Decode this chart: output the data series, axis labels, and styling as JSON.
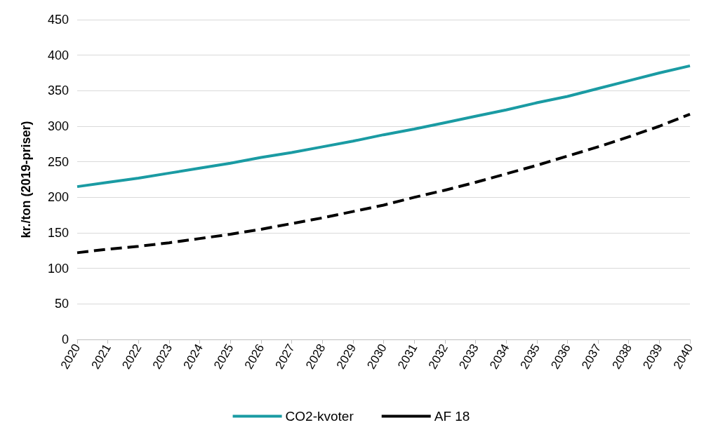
{
  "chart_data": {
    "type": "line",
    "ylabel": "kr./ton (2019-priser)",
    "categories": [
      "2020",
      "2021",
      "2022",
      "2023",
      "2024",
      "2025",
      "2026",
      "2027",
      "2028",
      "2029",
      "2030",
      "2031",
      "2032",
      "2033",
      "2034",
      "2035",
      "2036",
      "2037",
      "2038",
      "2039",
      "2040"
    ],
    "series": [
      {
        "name": "CO2-kvoter",
        "color": "#1a9ba3",
        "line_style": "solid",
        "values": [
          215,
          221,
          227,
          234,
          241,
          248,
          256,
          263,
          271,
          279,
          288,
          296,
          305,
          314,
          323,
          333,
          342,
          353,
          364,
          375,
          385
        ]
      },
      {
        "name": "AF 18",
        "color": "#000000",
        "line_style": "dashed",
        "values": [
          122,
          127,
          131,
          136,
          142,
          148,
          155,
          163,
          171,
          180,
          189,
          200,
          210,
          221,
          233,
          245,
          258,
          271,
          285,
          300,
          317
        ]
      }
    ],
    "ylim": [
      0,
      450
    ],
    "yticks": [
      0,
      50,
      100,
      150,
      200,
      250,
      300,
      350,
      400,
      450
    ],
    "grid": "y",
    "legend": "bottom",
    "marker": "none"
  }
}
